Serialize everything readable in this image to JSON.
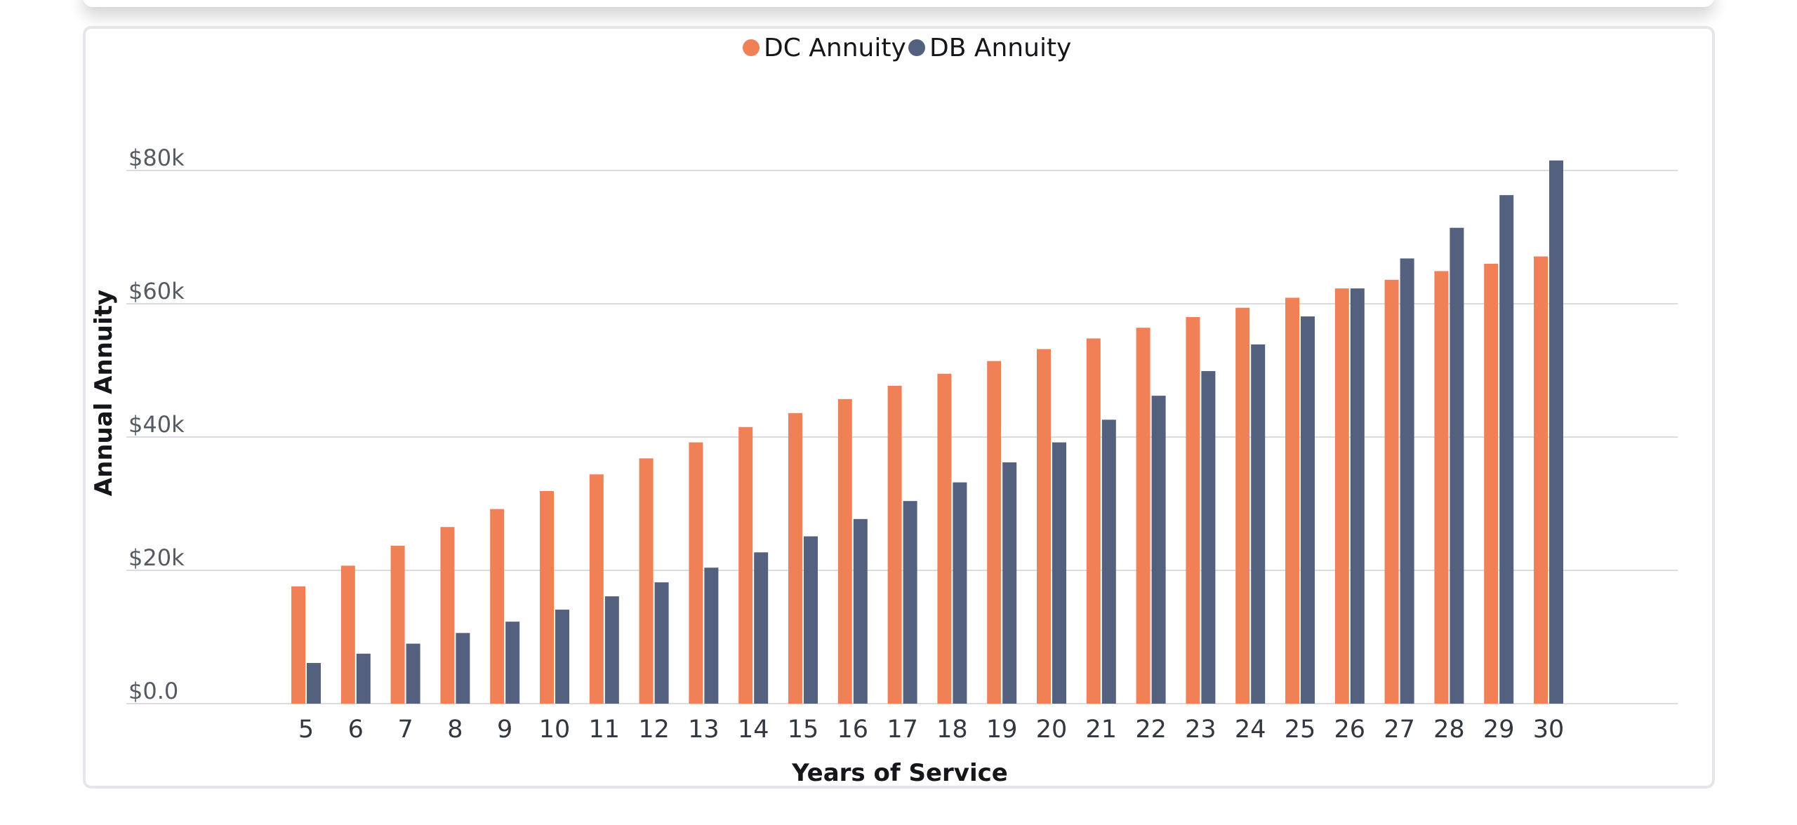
{
  "colors": {
    "dc": "#f08055",
    "db": "#53617f",
    "grid": "#dadcdf",
    "card_border": "#e4e6e9"
  },
  "chart_data": {
    "type": "bar",
    "xlabel": "Years of Service",
    "ylabel": "Annual Annuity",
    "ylim": [
      0,
      80000
    ],
    "y_ticks": [
      {
        "value": 0,
        "label": "$0.0"
      },
      {
        "value": 20000,
        "label": "$20k"
      },
      {
        "value": 40000,
        "label": "$40k"
      },
      {
        "value": 60000,
        "label": "$60k"
      },
      {
        "value": 80000,
        "label": "$80k"
      }
    ],
    "grid": true,
    "legend_position": "top-center",
    "categories": [
      "5",
      "6",
      "7",
      "8",
      "9",
      "10",
      "11",
      "12",
      "13",
      "14",
      "15",
      "16",
      "17",
      "18",
      "19",
      "20",
      "21",
      "22",
      "23",
      "24",
      "25",
      "26",
      "27",
      "28",
      "29",
      "30"
    ],
    "series": [
      {
        "name": "DC Annuity",
        "color": "#f08055",
        "values": [
          17600,
          20700,
          23700,
          26500,
          29200,
          31900,
          34400,
          36800,
          39200,
          41500,
          43600,
          45700,
          47700,
          49500,
          51400,
          53200,
          54800,
          56400,
          58000,
          59400,
          60900,
          62300,
          63600,
          64900,
          66000,
          67100
        ]
      },
      {
        "name": "DB Annuity",
        "color": "#53617f",
        "values": [
          6100,
          7500,
          9000,
          10600,
          12300,
          14100,
          16100,
          18200,
          20400,
          22700,
          25100,
          27700,
          30400,
          33200,
          36200,
          39200,
          42600,
          46200,
          49900,
          53900,
          58100,
          62300,
          66800,
          71400,
          76300,
          81500
        ]
      }
    ]
  }
}
